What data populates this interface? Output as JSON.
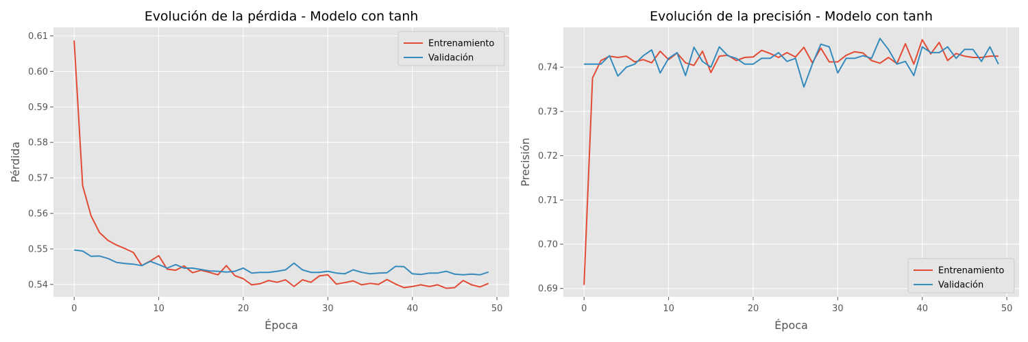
{
  "colors": {
    "train": "#e24a33",
    "val": "#348abd",
    "plot_bg": "#e5e5e5",
    "grid": "#ffffff"
  },
  "chart_data": [
    {
      "type": "line",
      "title": "Evolución de la pérdida - Modelo con tanh",
      "xlabel": "Época",
      "ylabel": "Pérdida",
      "xlim": [
        -2.45,
        51.45
      ],
      "ylim": [
        0.5365,
        0.6124
      ],
      "xticks": [
        0,
        10,
        20,
        30,
        40,
        50
      ],
      "yticks": [
        0.54,
        0.55,
        0.56,
        0.57,
        0.58,
        0.59,
        0.6,
        0.61
      ],
      "ytick_labels": [
        "0.54",
        "0.55",
        "0.56",
        "0.57",
        "0.58",
        "0.59",
        "0.60",
        "0.61"
      ],
      "grid": true,
      "legend_position": "top-right",
      "series": [
        {
          "name": "Entrenamiento",
          "color_key": "train",
          "values": [
            0.6087,
            0.5678,
            0.5593,
            0.5546,
            0.5524,
            0.5511,
            0.5501,
            0.549,
            0.5453,
            0.5466,
            0.5481,
            0.5443,
            0.544,
            0.5452,
            0.5433,
            0.544,
            0.5434,
            0.5427,
            0.5453,
            0.5425,
            0.5416,
            0.5399,
            0.5402,
            0.5411,
            0.5406,
            0.5413,
            0.5394,
            0.5413,
            0.5406,
            0.5424,
            0.5427,
            0.5401,
            0.5405,
            0.541,
            0.5399,
            0.5403,
            0.54,
            0.5414,
            0.5401,
            0.5391,
            0.5394,
            0.5399,
            0.5394,
            0.5399,
            0.5389,
            0.5391,
            0.5411,
            0.5399,
            0.5393,
            0.5403
          ]
        },
        {
          "name": "Validación",
          "color_key": "val",
          "values": [
            0.5497,
            0.5494,
            0.5479,
            0.548,
            0.5473,
            0.5462,
            0.5459,
            0.5457,
            0.5453,
            0.5465,
            0.5456,
            0.5446,
            0.5456,
            0.5446,
            0.5446,
            0.5442,
            0.5438,
            0.5437,
            0.5435,
            0.5437,
            0.5446,
            0.5432,
            0.5434,
            0.5434,
            0.5437,
            0.5441,
            0.546,
            0.5441,
            0.5434,
            0.5434,
            0.5437,
            0.5432,
            0.543,
            0.5441,
            0.5434,
            0.543,
            0.5432,
            0.5433,
            0.5451,
            0.545,
            0.543,
            0.5428,
            0.5432,
            0.5432,
            0.5437,
            0.5429,
            0.5427,
            0.5429,
            0.5427,
            0.5435
          ]
        }
      ]
    },
    {
      "type": "line",
      "title": "Evolución de la precisión - Modelo con tanh",
      "xlabel": "Época",
      "ylabel": "Precisión",
      "xlim": [
        -2.45,
        51.45
      ],
      "ylim": [
        0.6881,
        0.749
      ],
      "xticks": [
        0,
        10,
        20,
        30,
        40,
        50
      ],
      "yticks": [
        0.69,
        0.7,
        0.71,
        0.72,
        0.73,
        0.74
      ],
      "ytick_labels": [
        "0.69",
        "0.70",
        "0.71",
        "0.72",
        "0.73",
        "0.74"
      ],
      "grid": true,
      "legend_position": "bottom-right",
      "series": [
        {
          "name": "Entrenamiento",
          "color_key": "train",
          "values": [
            0.6908,
            0.7376,
            0.7415,
            0.7425,
            0.7422,
            0.7425,
            0.7412,
            0.7417,
            0.741,
            0.7436,
            0.7417,
            0.7432,
            0.741,
            0.7404,
            0.7436,
            0.7388,
            0.7425,
            0.7427,
            0.7415,
            0.7422,
            0.7423,
            0.7438,
            0.7431,
            0.7422,
            0.7433,
            0.7423,
            0.7445,
            0.741,
            0.7443,
            0.7412,
            0.7412,
            0.7427,
            0.7435,
            0.7432,
            0.7415,
            0.7409,
            0.7422,
            0.7408,
            0.7453,
            0.7407,
            0.7462,
            0.743,
            0.7456,
            0.7415,
            0.7431,
            0.7425,
            0.7422,
            0.7422,
            0.7425,
            0.7425
          ]
        },
        {
          "name": "Validación",
          "color_key": "val",
          "values": [
            0.7407,
            0.7407,
            0.7407,
            0.7426,
            0.738,
            0.74,
            0.7407,
            0.7426,
            0.7439,
            0.7387,
            0.742,
            0.7433,
            0.7381,
            0.7445,
            0.7413,
            0.74,
            0.7446,
            0.7426,
            0.742,
            0.7407,
            0.7407,
            0.742,
            0.742,
            0.7433,
            0.7413,
            0.742,
            0.7355,
            0.7407,
            0.7452,
            0.7446,
            0.7387,
            0.742,
            0.742,
            0.7426,
            0.742,
            0.7465,
            0.744,
            0.7407,
            0.7413,
            0.7381,
            0.7446,
            0.7433,
            0.7433,
            0.7446,
            0.742,
            0.744,
            0.744,
            0.7413,
            0.7446,
            0.7407
          ]
        }
      ]
    }
  ]
}
